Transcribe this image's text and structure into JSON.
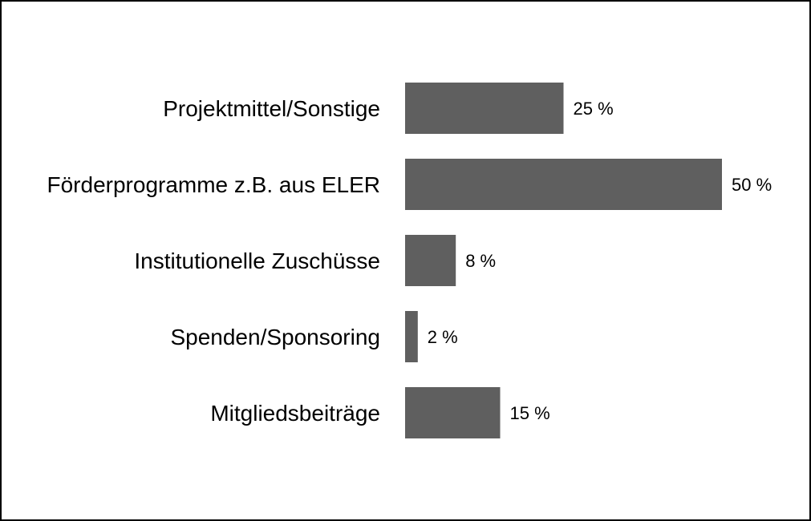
{
  "chart_data": {
    "type": "bar",
    "orientation": "horizontal",
    "categories": [
      "Projektmittel/Sonstige",
      "Förderprogramme z.B. aus ELER",
      "Institutionelle Zuschüsse",
      "Spenden/Sponsoring",
      "Mitgliedsbeiträge"
    ],
    "values": [
      25,
      50,
      8,
      2,
      15
    ],
    "value_labels": [
      "25 %",
      "50 %",
      "8 %",
      "2 %",
      "15 %"
    ],
    "unit": "%",
    "xlim": [
      0,
      50
    ],
    "grid": false,
    "legend": "none",
    "bar_color": "#5f5f5f",
    "title": "",
    "xlabel": "",
    "ylabel": ""
  }
}
